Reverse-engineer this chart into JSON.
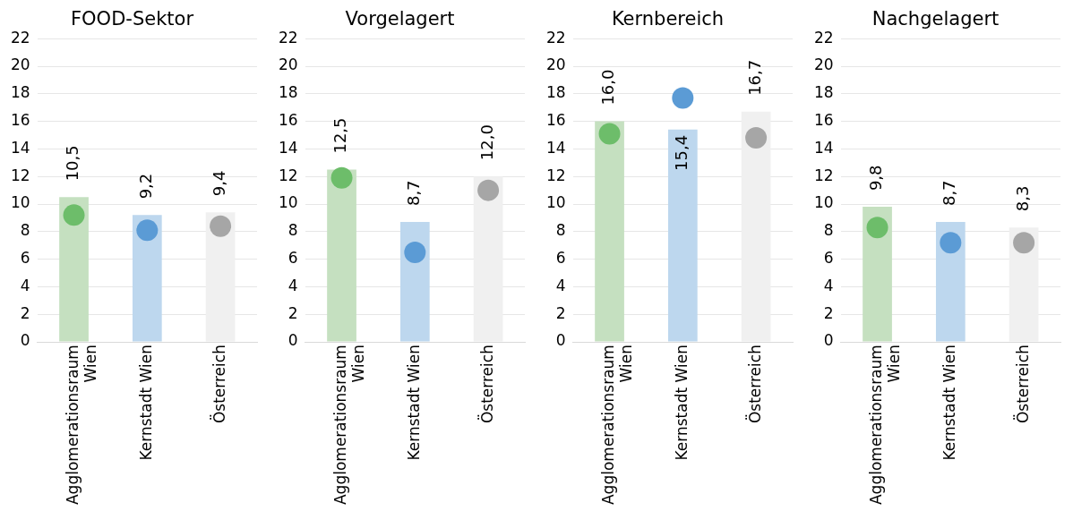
{
  "chart_data": [
    {
      "type": "bar",
      "title": "FOOD-Sektor",
      "categories": [
        "Agglomerationsraum Wien",
        "Kernstadt Wien",
        "Österreich"
      ],
      "ylim": [
        0,
        22
      ],
      "yticks": [
        0,
        2,
        4,
        6,
        8,
        10,
        12,
        14,
        16,
        18,
        20,
        22
      ],
      "grid": "y",
      "legend": false,
      "series": [
        {
          "type": "bar",
          "colors": [
            "#c5e0c0",
            "#bdd7ee",
            "#f0f0f0"
          ],
          "values": [
            10.5,
            9.2,
            9.4
          ],
          "value_labels": [
            "10,5",
            "9,2",
            "9,4"
          ]
        },
        {
          "type": "scatter",
          "marker": "circle",
          "x": [
            "Agglomerationsraum Wien",
            "Kernstadt Wien",
            "Österreich"
          ],
          "colors": [
            "#6dbd6a",
            "#5b9bd5",
            "#a6a6a6"
          ],
          "values": [
            9.2,
            8.1,
            8.4
          ]
        }
      ]
    },
    {
      "type": "bar",
      "title": "Vorgelagert",
      "categories": [
        "Agglomerationsraum Wien",
        "Kernstadt Wien",
        "Österreich"
      ],
      "ylim": [
        0,
        22
      ],
      "yticks": [
        0,
        2,
        4,
        6,
        8,
        10,
        12,
        14,
        16,
        18,
        20,
        22
      ],
      "grid": "y",
      "legend": false,
      "series": [
        {
          "type": "bar",
          "colors": [
            "#c5e0c0",
            "#bdd7ee",
            "#f0f0f0"
          ],
          "values": [
            12.5,
            8.7,
            12.0
          ],
          "value_labels": [
            "12,5",
            "8,7",
            "12,0"
          ]
        },
        {
          "type": "scatter",
          "marker": "circle",
          "x": [
            "Agglomerationsraum Wien",
            "Kernstadt Wien",
            "Österreich"
          ],
          "colors": [
            "#6dbd6a",
            "#5b9bd5",
            "#a6a6a6"
          ],
          "values": [
            11.9,
            6.5,
            11.0
          ]
        }
      ]
    },
    {
      "type": "bar",
      "title": "Kernbereich",
      "categories": [
        "Agglomerationsraum Wien",
        "Kernstadt Wien",
        "Österreich"
      ],
      "ylim": [
        0,
        22
      ],
      "yticks": [
        0,
        2,
        4,
        6,
        8,
        10,
        12,
        14,
        16,
        18,
        20,
        22
      ],
      "grid": "y",
      "legend": false,
      "series": [
        {
          "type": "bar",
          "colors": [
            "#c5e0c0",
            "#bdd7ee",
            "#f0f0f0"
          ],
          "values": [
            16.0,
            15.4,
            16.7
          ],
          "value_labels": [
            "16,0",
            "15,4",
            "16,7"
          ]
        },
        {
          "type": "scatter",
          "marker": "circle",
          "x": [
            "Agglomerationsraum Wien",
            "Kernstadt Wien",
            "Österreich"
          ],
          "colors": [
            "#6dbd6a",
            "#5b9bd5",
            "#a6a6a6"
          ],
          "values": [
            15.1,
            17.7,
            14.8
          ]
        }
      ]
    },
    {
      "type": "bar",
      "title": "Nachgelagert",
      "categories": [
        "Agglomerationsraum Wien",
        "Kernstadt Wien",
        "Österreich"
      ],
      "ylim": [
        0,
        22
      ],
      "yticks": [
        0,
        2,
        4,
        6,
        8,
        10,
        12,
        14,
        16,
        18,
        20,
        22
      ],
      "grid": "y",
      "legend": false,
      "series": [
        {
          "type": "bar",
          "colors": [
            "#c5e0c0",
            "#bdd7ee",
            "#f0f0f0"
          ],
          "values": [
            9.8,
            8.7,
            8.3
          ],
          "value_labels": [
            "9,8",
            "8,7",
            "8,3"
          ]
        },
        {
          "type": "scatter",
          "marker": "circle",
          "x": [
            "Agglomerationsraum Wien",
            "Kernstadt Wien",
            "Österreich"
          ],
          "colors": [
            "#6dbd6a",
            "#5b9bd5",
            "#a6a6a6"
          ],
          "values": [
            8.3,
            7.2,
            7.2
          ]
        }
      ]
    }
  ]
}
